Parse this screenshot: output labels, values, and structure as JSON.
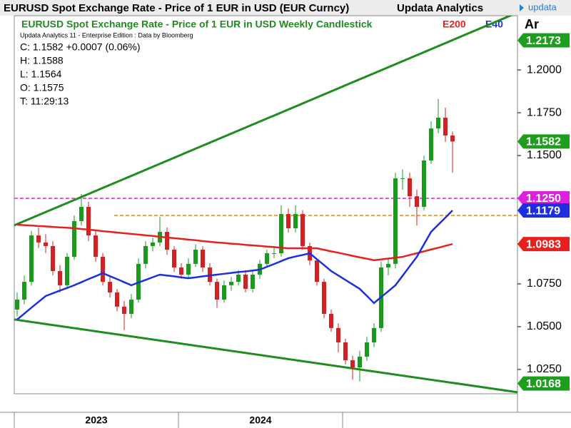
{
  "chart_data": {
    "type": "candlestick",
    "title": "EURUSD Spot Exchange Rate - Price of 1 EUR in USD (EUR Curncy)",
    "brand": "Updata Analytics",
    "logo": "updata",
    "subtitle": "EURUSD Spot Exchange Rate - Price of 1 EUR in USD Weekly Candlestick",
    "axis_label": "Ar",
    "source": "Updata Analytics 11 - Enterprise Edition : Data by Bloomberg",
    "info": [
      "C: 1.1582  +0.0007 (0.06%)",
      "H: 1.1588",
      "L: 1.1564",
      "O: 1.1575",
      "T: 11:29:13"
    ],
    "periods": [
      "2023",
      "2024"
    ],
    "up_color": "#1a9a1a",
    "down_color": "#d42020",
    "open": [
      1.06,
      1.0658,
      1.0762,
      1.1033,
      1.0992,
      1.0971,
      1.0825,
      1.0742,
      1.0908,
      1.1117,
      1.12,
      1.1033,
      1.0908,
      1.0762,
      1.07,
      1.0617,
      1.0575,
      1.0658,
      1.0867,
      1.0971,
      1.0992,
      1.1054,
      1.095,
      1.0846,
      1.0804,
      1.0867,
      1.095,
      1.0846,
      1.0762,
      1.0658,
      1.0742,
      1.0762,
      1.0804,
      1.0721,
      1.0804,
      1.0867,
      1.0929,
      1.0929,
      1.1158,
      1.1075,
      1.1158,
      1.0971,
      1.0887,
      1.0762,
      1.0575,
      1.0492,
      1.0408,
      1.0304,
      1.0262,
      1.0325,
      1.0408,
      1.0492,
      1.0846,
      1.0867,
      1.1367,
      1.1367,
      1.1262,
      1.12,
      1.1471,
      1.1658,
      1.1721,
      1.1617
    ],
    "high": [
      1.07,
      1.08,
      1.106,
      1.108,
      1.104,
      1.1,
      1.086,
      1.093,
      1.115,
      1.1275,
      1.123,
      1.106,
      1.093,
      1.079,
      1.072,
      1.065,
      1.069,
      1.09,
      1.1,
      1.102,
      1.114,
      1.108,
      1.097,
      1.087,
      1.09,
      1.098,
      1.097,
      1.087,
      1.078,
      1.077,
      1.079,
      1.083,
      1.083,
      1.083,
      1.089,
      1.095,
      1.096,
      1.121,
      1.119,
      1.121,
      1.118,
      1.099,
      1.09,
      1.078,
      1.06,
      1.052,
      1.043,
      1.033,
      1.036,
      1.044,
      1.052,
      1.088,
      1.09,
      1.14,
      1.142,
      1.14,
      1.13,
      1.15,
      1.17,
      1.183,
      1.178,
      1.164
    ],
    "low": [
      1.056,
      1.063,
      1.074,
      1.096,
      1.093,
      1.08,
      1.07,
      1.072,
      1.089,
      1.109,
      1.1,
      1.088,
      1.074,
      1.067,
      1.059,
      1.048,
      1.055,
      1.064,
      1.084,
      1.094,
      1.097,
      1.092,
      1.082,
      1.078,
      1.078,
      1.085,
      1.082,
      1.074,
      1.061,
      1.064,
      1.071,
      1.074,
      1.07,
      1.07,
      1.078,
      1.085,
      1.09,
      1.091,
      1.105,
      1.105,
      1.095,
      1.086,
      1.074,
      1.055,
      1.047,
      1.035,
      1.028,
      1.019,
      1.018,
      1.03,
      1.038,
      1.047,
      1.08,
      1.084,
      1.13,
      1.12,
      1.109,
      1.118,
      1.145,
      1.163,
      1.158,
      1.14
    ],
    "close": [
      1.0658,
      1.0762,
      1.1033,
      1.0992,
      1.0971,
      1.0825,
      1.0742,
      1.0908,
      1.1117,
      1.12,
      1.1033,
      1.0908,
      1.0762,
      1.07,
      1.0617,
      1.0575,
      1.0658,
      1.0867,
      1.0971,
      1.0992,
      1.1054,
      1.095,
      1.0846,
      1.0804,
      1.0867,
      1.095,
      1.0846,
      1.0762,
      1.0658,
      1.0742,
      1.0762,
      1.0804,
      1.0721,
      1.0804,
      1.0867,
      1.0929,
      1.0929,
      1.1158,
      1.1075,
      1.1158,
      1.0971,
      1.0887,
      1.0762,
      1.0575,
      1.0492,
      1.0408,
      1.0304,
      1.0262,
      1.0325,
      1.0408,
      1.0492,
      1.0846,
      1.0867,
      1.1367,
      1.1367,
      1.1262,
      1.12,
      1.1471,
      1.1658,
      1.1721,
      1.1617,
      1.1582
    ],
    "series": [
      {
        "name": "E200",
        "color": "#e8201c",
        "values": [
          1.1096,
          1.1093,
          1.1091,
          1.1088,
          1.1086,
          1.1083,
          1.108,
          1.1078,
          1.1075,
          1.1071,
          1.1067,
          1.1063,
          1.1058,
          1.1054,
          1.105,
          1.1046,
          1.1042,
          1.1038,
          1.1034,
          1.103,
          1.1025,
          1.1021,
          1.1017,
          1.1013,
          1.1009,
          1.1005,
          1.1,
          1.0996,
          1.0992,
          1.0989,
          1.0985,
          1.0982,
          1.0978,
          1.0975,
          1.0972,
          1.0968,
          1.0965,
          1.0961,
          1.0958,
          1.0958,
          1.0958,
          1.0958,
          1.0958,
          1.0949,
          1.094,
          1.0932,
          1.0923,
          1.0914,
          1.0905,
          1.0897,
          1.0888,
          1.0893,
          1.0898,
          1.0903,
          1.0908,
          1.0919,
          1.0929,
          1.094,
          1.0951,
          1.0961,
          1.0972,
          1.0983
        ]
      },
      {
        "name": "E40",
        "color": "#1c2ee0",
        "values": [
          1.0542,
          1.0576,
          1.0611,
          1.0645,
          1.0679,
          1.0695,
          1.0711,
          1.0726,
          1.0742,
          1.076,
          1.0778,
          1.0795,
          1.0813,
          1.0795,
          1.0778,
          1.076,
          1.0742,
          1.0758,
          1.0773,
          1.0789,
          1.0804,
          1.0799,
          1.0794,
          1.0788,
          1.0783,
          1.0788,
          1.0794,
          1.0799,
          1.0804,
          1.0809,
          1.0814,
          1.0819,
          1.0823,
          1.0828,
          1.0833,
          1.085,
          1.0866,
          1.0883,
          1.09,
          1.091,
          1.0919,
          1.0929,
          1.0894,
          1.086,
          1.0825,
          1.0799,
          1.0773,
          1.0747,
          1.0721,
          1.068,
          1.0638,
          1.0673,
          1.0707,
          1.0742,
          1.0797,
          1.0853,
          1.0908,
          1.0981,
          1.1054,
          1.1096,
          1.1137,
          1.1179
        ]
      }
    ],
    "trendlines": [
      {
        "color": "#1e8c1e",
        "values": [
          1.1092,
          1.2335
        ]
      },
      {
        "color": "#1e8c1e",
        "values": [
          1.0542,
          1.0117
        ]
      }
    ],
    "levels": [
      {
        "value": 1.125,
        "color": "#e020e0"
      },
      {
        "value": 1.115,
        "color": "#e08a10"
      }
    ],
    "price_labels": [
      {
        "value": 1.2173,
        "label": "1.2173",
        "color": "#1e9e1e"
      },
      {
        "value": 1.1582,
        "label": "1.1582",
        "color": "#1e9e1e"
      },
      {
        "value": 1.125,
        "label": "1.1250",
        "color": "#e020e0"
      },
      {
        "value": 1.1179,
        "label": "1.1179",
        "color": "#1c2ee0"
      },
      {
        "value": 1.0983,
        "label": "1.0983",
        "color": "#e8201c"
      },
      {
        "value": 1.0168,
        "label": "1.0168",
        "color": "#1e9e1e"
      }
    ],
    "ylim": [
      1.0108,
      1.2317
    ],
    "yticks": [
      {
        "value": 1.025,
        "label": "1.0250"
      },
      {
        "value": 1.05,
        "label": "1.0500"
      },
      {
        "value": 1.075,
        "label": "1.0750"
      },
      {
        "value": 1.15,
        "label": "1.1500"
      },
      {
        "value": 1.175,
        "label": "1.1750"
      },
      {
        "value": 1.2,
        "label": "1.2000"
      }
    ]
  }
}
